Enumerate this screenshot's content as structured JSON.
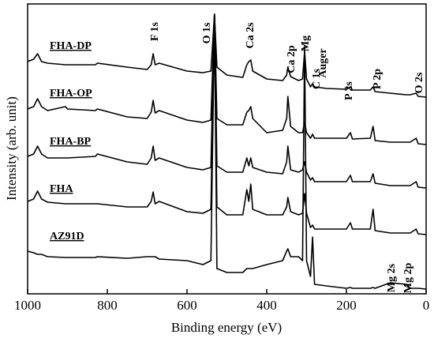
{
  "chart_data": {
    "type": "line",
    "xlabel": "Binding energy (eV)",
    "ylabel": "Intensity (arb. unit)",
    "xlim": [
      1000,
      0
    ],
    "xticks": [
      1000,
      800,
      600,
      400,
      200,
      0
    ],
    "ylim": [
      0,
      367
    ],
    "grid": false,
    "x": [
      1000,
      985,
      975,
      965,
      950,
      905,
      900,
      830,
      825,
      750,
      700,
      690,
      685,
      680,
      670,
      600,
      560,
      540,
      531,
      525,
      500,
      460,
      450,
      445,
      440,
      435,
      400,
      360,
      350,
      347,
      340,
      320,
      310,
      305,
      300,
      290,
      285,
      280,
      250,
      200,
      190,
      185,
      140,
      133,
      128,
      90,
      50,
      40,
      25,
      20,
      0
    ],
    "series": [
      {
        "name": "FHA-DP",
        "color": "#000000",
        "values": [
          294,
          297,
          304,
          294,
          292,
          290,
          290,
          290,
          292,
          287,
          284,
          290,
          304,
          290,
          292,
          282,
          280,
          282,
          354,
          287,
          277,
          274,
          290,
          294,
          296,
          282,
          272,
          270,
          277,
          287,
          275,
          270,
          272,
          307,
          272,
          262,
          266,
          262,
          260,
          259,
          262,
          258,
          258,
          262,
          256,
          254,
          252,
          252,
          254,
          250,
          249
        ]
      },
      {
        "name": "FHA-OP",
        "color": "#000000",
        "values": [
          234,
          237,
          247,
          237,
          232,
          237,
          234,
          232,
          234,
          224,
          222,
          230,
          245,
          229,
          232,
          220,
          217,
          220,
          354,
          222,
          214,
          214,
          230,
          232,
          237,
          222,
          204,
          207,
          222,
          250,
          212,
          204,
          204,
          217,
          204,
          197,
          202,
          197,
          197,
          197,
          204,
          196,
          197,
          212,
          194,
          192,
          192,
          192,
          197,
          190,
          189
        ]
      },
      {
        "name": "FHA-BP",
        "color": "#000000",
        "values": [
          174,
          177,
          187,
          177,
          172,
          172,
          172,
          174,
          177,
          167,
          164,
          172,
          187,
          169,
          172,
          160,
          157,
          160,
          354,
          162,
          154,
          154,
          172,
          162,
          172,
          160,
          154,
          152,
          167,
          187,
          157,
          154,
          157,
          167,
          154,
          144,
          147,
          142,
          142,
          142,
          150,
          142,
          142,
          152,
          140,
          137,
          137,
          137,
          142,
          135,
          134
        ]
      },
      {
        "name": "FHA",
        "color": "#000000",
        "values": [
          117,
          120,
          130,
          120,
          116,
          114,
          114,
          114,
          114,
          110,
          110,
          117,
          129,
          114,
          117,
          104,
          102,
          107,
          354,
          110,
          100,
          100,
          132,
          117,
          139,
          107,
          100,
          100,
          110,
          122,
          104,
          100,
          102,
          127,
          102,
          84,
          87,
          82,
          82,
          82,
          90,
          82,
          82,
          107,
          80,
          77,
          77,
          77,
          82,
          76,
          75
        ]
      },
      {
        "name": "AZ91D",
        "color": "#000000",
        "values": [
          54,
          52,
          50,
          50,
          47,
          46,
          46,
          46,
          47,
          45,
          47,
          47,
          47,
          47,
          44,
          42,
          37,
          42,
          352,
          32,
          27,
          27,
          32,
          32,
          32,
          32,
          37,
          42,
          54,
          57,
          47,
          47,
          42,
          314,
          42,
          22,
          72,
          12,
          10,
          7,
          8,
          7,
          7,
          8,
          7,
          14,
          12,
          7,
          7,
          7,
          6
        ]
      }
    ],
    "annotations": [
      "F 1s",
      "O 1s",
      "Ca 2s",
      "Ca 2p",
      "Mg",
      "Auger",
      "C 1s",
      "P 2s",
      "P 2p",
      "O 2s",
      "Mg 2s",
      "Mg 2p"
    ]
  }
}
